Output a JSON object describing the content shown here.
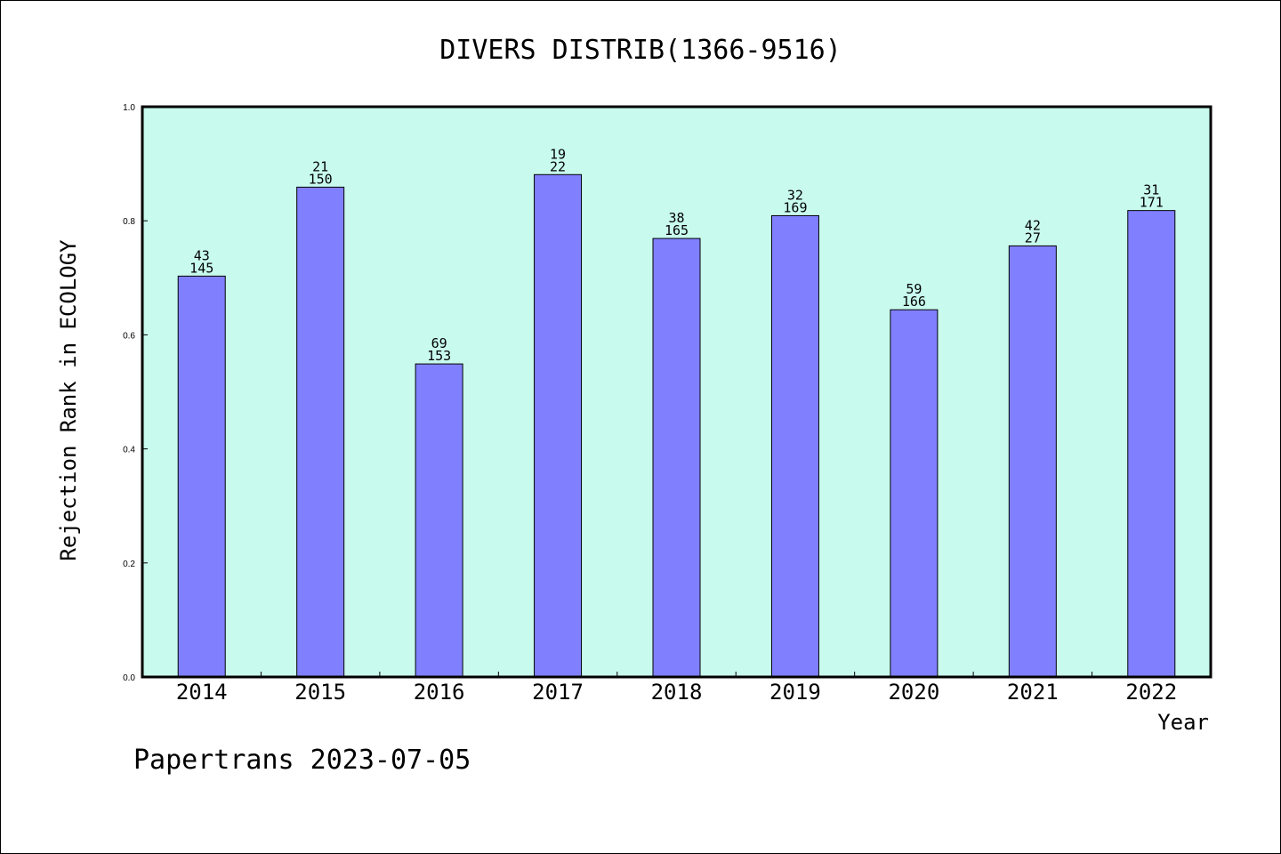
{
  "footer": {
    "text": "Papertrans 2023-07-05"
  },
  "colors": {
    "plot_background": "#c8fbee",
    "bar_fill": "#8080ff",
    "bar_stroke": "#000000",
    "page_background": "#ffffff"
  },
  "chart_data": {
    "type": "bar",
    "title": "DIVERS DISTRIB(1366-9516)",
    "xlabel": "Year",
    "ylabel": "Rejection Rank in ECOLOGY",
    "ylim": [
      0,
      1.0
    ],
    "yticks": [
      "0.0",
      "0.2",
      "0.4",
      "0.6",
      "0.8",
      "1.0"
    ],
    "grid": false,
    "categories": [
      "2014",
      "2015",
      "2016",
      "2017",
      "2018",
      "2019",
      "2020",
      "2021",
      "2022"
    ],
    "values": [
      0.703,
      0.859,
      0.549,
      0.881,
      0.769,
      0.809,
      0.644,
      0.756,
      0.818
    ],
    "label_top": [
      "43",
      "21",
      "69",
      "19",
      "38",
      "32",
      "59",
      "42",
      "31"
    ],
    "label_bottom": [
      "145",
      "150",
      "153",
      "22",
      "165",
      "169",
      "166",
      "27",
      "171"
    ]
  }
}
